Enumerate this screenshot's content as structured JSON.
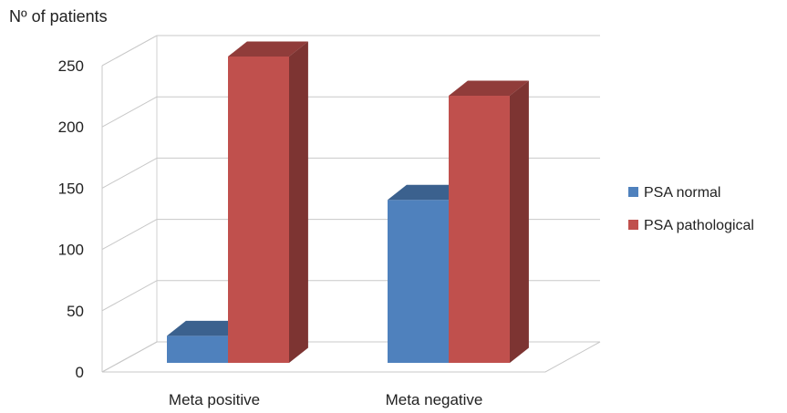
{
  "chart_data": {
    "type": "bar",
    "style": "3d-clustered-column",
    "ylabel": "Nº of patients",
    "categories": [
      "Meta positive",
      "Meta negative"
    ],
    "series": [
      {
        "name": "PSA normal",
        "values": [
          22,
          133
        ],
        "color": "#4F81BD"
      },
      {
        "name": "PSA pathological",
        "values": [
          250,
          218
        ],
        "color": "#C0504D"
      }
    ],
    "ylim": [
      0,
      250
    ],
    "yticks": [
      "0",
      "50",
      "100",
      "150",
      "200",
      "250"
    ],
    "grid": true,
    "legend_position": "right"
  }
}
